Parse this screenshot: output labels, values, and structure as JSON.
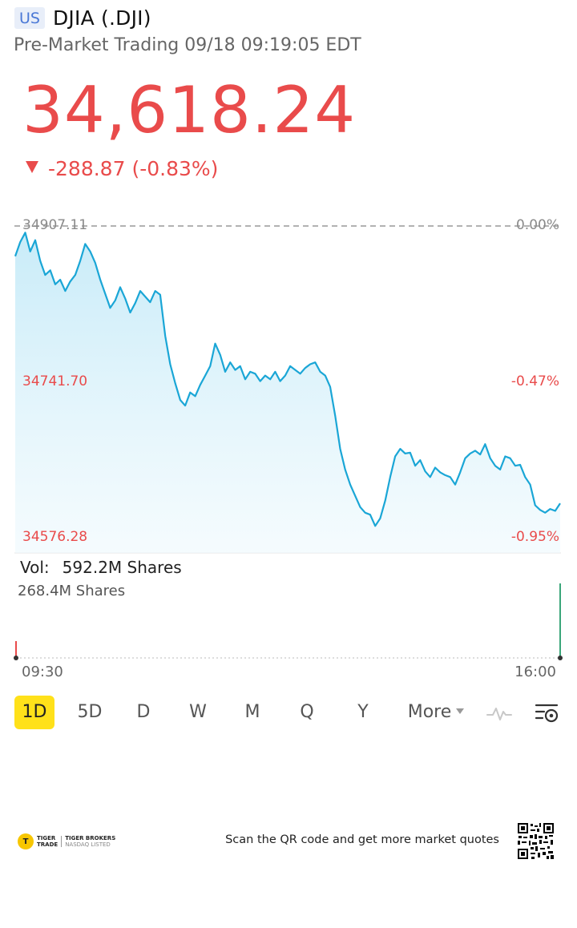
{
  "header": {
    "market": "US",
    "title": "DJIA (.DJI)",
    "subtitle": "Pre-Market Trading 09/18 09:19:05 EDT"
  },
  "quote": {
    "price": "34,618.24",
    "change": "-288.87 (-0.83%)",
    "direction": "down",
    "color_down": "#e94b4b"
  },
  "chart": {
    "prev_close_label": "34907.11",
    "prev_close_pct": "0.00%",
    "mid_label": "34741.70",
    "mid_pct": "-0.47%",
    "low_label": "34576.28",
    "low_pct": "-0.95%",
    "line_color": "#1aa6d6"
  },
  "chart_data": {
    "type": "area",
    "title": "",
    "xlabel": "",
    "ylabel": "",
    "x_range": [
      "09:30",
      "16:00"
    ],
    "ylim": [
      34576.28,
      34907.11
    ],
    "series": [
      {
        "values": [
          34875,
          34890,
          34900,
          34880,
          34892,
          34870,
          34855,
          34860,
          34845,
          34850,
          34838,
          34848,
          34855,
          34870,
          34888,
          34880,
          34868,
          34850,
          34835,
          34820,
          34828,
          34842,
          34830,
          34815,
          34825,
          34838,
          34832,
          34826,
          34838,
          34834,
          34790,
          34760,
          34740,
          34722,
          34716,
          34730,
          34726,
          34738,
          34748,
          34758,
          34782,
          34770,
          34752,
          34762,
          34754,
          34758,
          34744,
          34752,
          34750,
          34742,
          34748,
          34744,
          34752,
          34742,
          34748,
          34758,
          34754,
          34750,
          34756,
          34760,
          34762,
          34752,
          34748,
          34736,
          34705,
          34670,
          34648,
          34632,
          34620,
          34608,
          34602,
          34600,
          34588,
          34596,
          34615,
          34640,
          34662,
          34670,
          34665,
          34666,
          34652,
          34658,
          34646,
          34640,
          34650,
          34645,
          34642,
          34640,
          34632,
          34645,
          34660,
          34665,
          34668,
          34664,
          34675,
          34660,
          34652,
          34648,
          34662,
          34660,
          34652,
          34653,
          34640,
          34632,
          34610,
          34605,
          34602,
          34606,
          34604,
          34612
        ]
      }
    ]
  },
  "volume": {
    "label": "Vol:",
    "value": "592.2M Shares",
    "max_label": "268.4M Shares",
    "time_start": "09:30",
    "time_end": "16:00"
  },
  "tabs": [
    "1D",
    "5D",
    "D",
    "W",
    "M",
    "Q",
    "Y",
    "More"
  ],
  "active_tab": "1D",
  "footer": {
    "logo_line1": "TIGER",
    "logo_line2": "TRADE",
    "logo_line3": "TIGER BROKERS",
    "logo_line4": "NASDAQ LISTED",
    "scan_text": "Scan the QR code and get more market quotes"
  }
}
